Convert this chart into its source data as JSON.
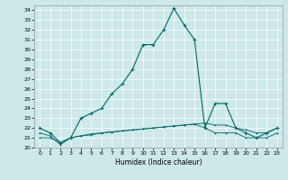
{
  "xlabel": "Humidex (Indice chaleur)",
  "bg_color": "#cce8e8",
  "grid_color": "#ffffff",
  "line_color": "#006666",
  "xlim": [
    -0.5,
    23.5
  ],
  "ylim": [
    20,
    34.5
  ],
  "yticks": [
    20,
    21,
    22,
    23,
    24,
    25,
    26,
    27,
    28,
    29,
    30,
    31,
    32,
    33,
    34
  ],
  "xticks": [
    0,
    1,
    2,
    3,
    4,
    5,
    6,
    7,
    8,
    9,
    10,
    11,
    12,
    13,
    14,
    15,
    16,
    17,
    18,
    19,
    20,
    21,
    22,
    23
  ],
  "series1_x": [
    0,
    1,
    2,
    3,
    4,
    5,
    6,
    7,
    8,
    9,
    10,
    11,
    12,
    13,
    14,
    15,
    16,
    17,
    18,
    19,
    20,
    21,
    22,
    23
  ],
  "series1_y": [
    22.0,
    21.5,
    20.5,
    21.0,
    23.0,
    23.5,
    24.0,
    25.5,
    26.5,
    28.0,
    30.5,
    30.5,
    32.0,
    34.2,
    32.5,
    31.0,
    22.0,
    24.5,
    24.5,
    22.0,
    21.5,
    21.0,
    21.5,
    22.0
  ],
  "series2_x": [
    0,
    1,
    2,
    3,
    4,
    5,
    6,
    7,
    8,
    9,
    10,
    11,
    12,
    13,
    14,
    15,
    16,
    17,
    18,
    19,
    20,
    21,
    22,
    23
  ],
  "series2_y": [
    21.5,
    21.2,
    20.3,
    21.0,
    21.2,
    21.3,
    21.5,
    21.6,
    21.7,
    21.8,
    21.9,
    22.0,
    22.1,
    22.2,
    22.3,
    22.4,
    22.0,
    21.5,
    21.5,
    21.5,
    21.0,
    21.0,
    21.0,
    21.5
  ],
  "series3_x": [
    0,
    1,
    2,
    3,
    4,
    5,
    6,
    7,
    8,
    9,
    10,
    11,
    12,
    13,
    14,
    15,
    16,
    17,
    18,
    19,
    20,
    21,
    22,
    23
  ],
  "series3_y": [
    21.0,
    21.0,
    20.5,
    21.0,
    21.2,
    21.4,
    21.5,
    21.6,
    21.7,
    21.8,
    21.9,
    22.0,
    22.1,
    22.2,
    22.3,
    22.4,
    22.5,
    22.3,
    22.3,
    22.0,
    21.8,
    21.5,
    21.5,
    22.0
  ]
}
